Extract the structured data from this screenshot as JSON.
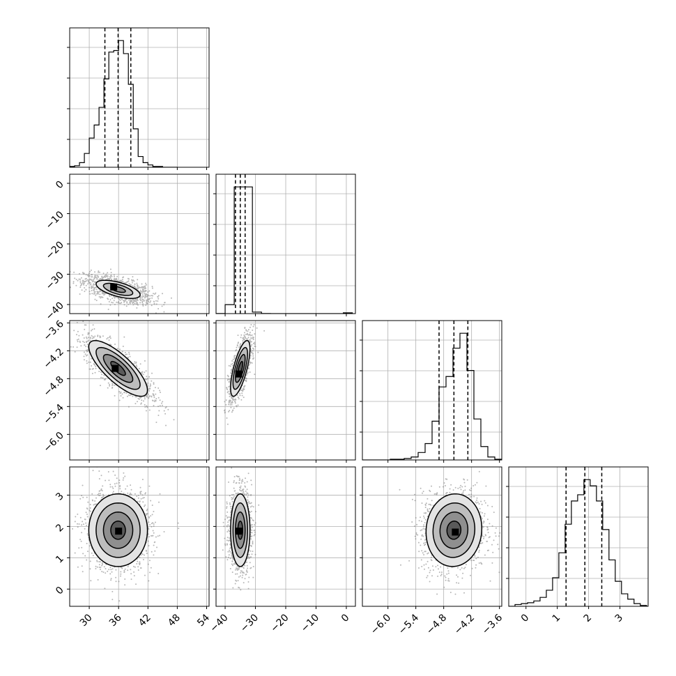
{
  "chart_data": {
    "type": "corner",
    "title": "",
    "variables": [
      {
        "label": "",
        "range": [
          26,
          54.5
        ],
        "ticks": [
          30,
          36,
          42,
          48,
          54
        ],
        "tick_labels": [
          "30",
          "36",
          "42",
          "48",
          "54"
        ],
        "quantiles": [
          33.2,
          35.9,
          38.5
        ]
      },
      {
        "label": "",
        "range": [
          -43,
          3
        ],
        "ticks": [
          -40,
          -30,
          -20,
          -10,
          0
        ],
        "tick_labels": [
          "−40",
          "−30",
          "−20",
          "−10",
          "0"
        ],
        "quantiles": [
          -36.6,
          -35.0,
          -33.4
        ]
      },
      {
        "label": "",
        "range": [
          -6.55,
          -3.55
        ],
        "ticks": [
          -6.0,
          -5.4,
          -4.8,
          -4.2,
          -3.6
        ],
        "tick_labels": [
          "−6.0",
          "−5.4",
          "−4.8",
          "−4.2",
          "−3.6"
        ],
        "quantiles": [
          -4.9,
          -4.58,
          -4.28
        ]
      },
      {
        "label": "",
        "range": [
          -0.55,
          3.9
        ],
        "ticks": [
          0,
          1,
          2,
          3
        ],
        "tick_labels": [
          "0",
          "1",
          "2",
          "3"
        ],
        "quantiles": [
          1.28,
          1.88,
          2.42
        ]
      }
    ],
    "histograms": [
      {
        "variable": 0,
        "bin_edges": [
          26,
          27,
          28,
          29,
          30,
          31,
          32,
          33,
          34,
          35,
          36,
          37,
          38,
          39,
          40,
          41,
          42,
          43,
          44,
          45,
          46,
          47,
          48
        ],
        "counts": [
          1,
          2,
          6,
          18,
          38,
          55,
          78,
          115,
          150,
          152,
          165,
          148,
          108,
          50,
          14,
          6,
          3,
          1,
          1,
          0,
          0,
          0
        ]
      },
      {
        "variable": 1,
        "bin_edges": [
          -43,
          -40,
          -37,
          -34,
          -31,
          -28,
          -25,
          -22,
          -19,
          -16,
          -13,
          -10,
          -7,
          -4,
          -1,
          2
        ],
        "counts": [
          1,
          70,
          990,
          990,
          12,
          1,
          0,
          0,
          0,
          0,
          0,
          0,
          0,
          0,
          6
        ]
      },
      {
        "variable": 2,
        "bin_edges": [
          -6.55,
          -6.4,
          -6.25,
          -6.1,
          -5.95,
          -5.8,
          -5.65,
          -5.5,
          -5.35,
          -5.2,
          -5.05,
          -4.9,
          -4.75,
          -4.6,
          -4.45,
          -4.3,
          -4.15,
          -4.0,
          -3.85,
          -3.7,
          -3.55
        ],
        "counts": [
          0,
          0,
          0,
          0,
          1,
          1,
          2,
          4,
          10,
          22,
          52,
          98,
          112,
          150,
          170,
          120,
          55,
          18,
          4,
          1
        ]
      },
      {
        "variable": 3,
        "bin_edges": [
          -0.55,
          -0.35,
          -0.15,
          0.05,
          0.25,
          0.45,
          0.65,
          0.85,
          1.05,
          1.25,
          1.45,
          1.65,
          1.85,
          2.05,
          2.25,
          2.45,
          2.65,
          2.85,
          3.05,
          3.25,
          3.45,
          3.65,
          3.85
        ],
        "counts": [
          0,
          2,
          3,
          4,
          6,
          10,
          18,
          32,
          60,
          92,
          118,
          125,
          142,
          135,
          118,
          86,
          52,
          28,
          14,
          8,
          3,
          1
        ]
      }
    ],
    "pairs": [
      {
        "x_var": 0,
        "y_var": 1,
        "mean": [
          35.9,
          -35.0
        ],
        "sd": [
          3.0,
          2.0
        ],
        "corr": -0.6,
        "levels_sigma": [
          0.5,
          1.0,
          1.5
        ],
        "peak": [
          35.0,
          -34.2
        ]
      },
      {
        "x_var": 0,
        "y_var": 2,
        "mean": [
          35.9,
          -4.58
        ],
        "sd": [
          3.0,
          0.3
        ],
        "corr": -0.78,
        "levels_sigma": [
          0.5,
          1.0,
          1.5,
          2.0
        ],
        "peak": [
          35.3,
          -4.58
        ]
      },
      {
        "x_var": 1,
        "y_var": 2,
        "mean": [
          -35.0,
          -4.58
        ],
        "sd": [
          1.6,
          0.3
        ],
        "corr": 0.7,
        "levels_sigma": [
          0.5,
          1.0,
          1.5,
          2.0
        ],
        "peak": [
          -35.5,
          -4.7
        ]
      },
      {
        "x_var": 0,
        "y_var": 3,
        "mean": [
          35.9,
          1.88
        ],
        "sd": [
          3.0,
          0.58
        ],
        "corr": 0.0,
        "levels_sigma": [
          0.5,
          1.0,
          1.5,
          2.0
        ],
        "peak": [
          36.0,
          1.85
        ]
      },
      {
        "x_var": 1,
        "y_var": 3,
        "mean": [
          -35.0,
          1.88
        ],
        "sd": [
          1.6,
          0.58
        ],
        "corr": 0.0,
        "levels_sigma": [
          0.5,
          1.0,
          1.5,
          2.0
        ],
        "peak": [
          -35.5,
          1.85
        ]
      },
      {
        "x_var": 2,
        "y_var": 3,
        "mean": [
          -4.58,
          1.88
        ],
        "sd": [
          0.3,
          0.58
        ],
        "corr": 0.05,
        "levels_sigma": [
          0.5,
          1.0,
          1.5,
          2.0
        ],
        "peak": [
          -4.55,
          1.82
        ]
      }
    ],
    "grid": true,
    "quantile_line_style": "dashed"
  }
}
